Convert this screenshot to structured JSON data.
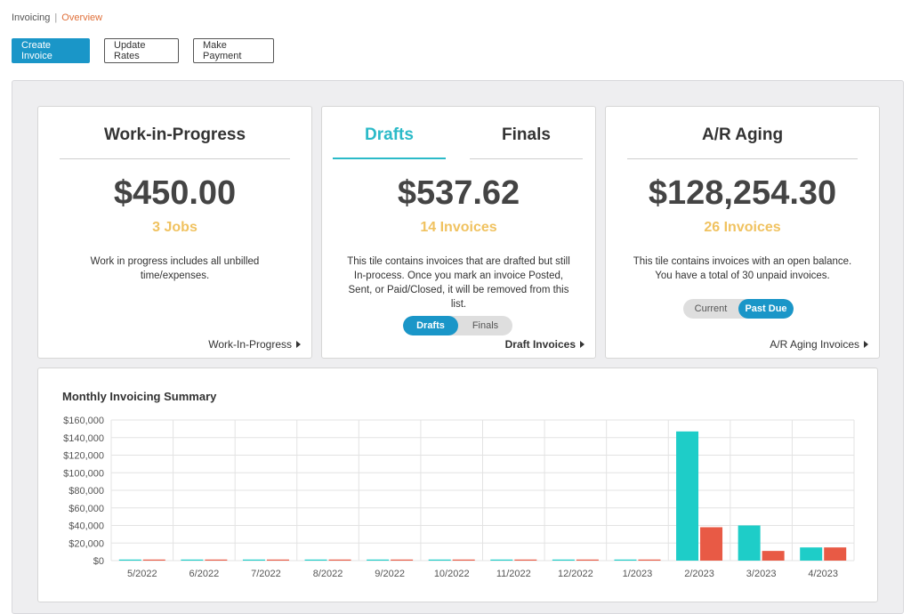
{
  "breadcrumb": {
    "root": "Invoicing",
    "separator": "|",
    "current": "Overview"
  },
  "toolbar": {
    "create_label": "Create Invoice",
    "update_label": "Update Rates",
    "payment_label": "Make Payment"
  },
  "wip": {
    "title": "Work-in-Progress",
    "amount": "$450.00",
    "count": "3 Jobs",
    "description": "Work in progress includes all unbilled time/expenses.",
    "link": "Work-In-Progress"
  },
  "drafts": {
    "tab_drafts": "Drafts",
    "tab_finals": "Finals",
    "amount": "$537.62",
    "count": "14 Invoices",
    "description": "This tile contains invoices that are drafted but still In-process. Once you mark an invoice Posted, Sent, or Paid/Closed, it will be removed from this list.",
    "toggle_on": "Drafts",
    "toggle_off": "Finals",
    "link": "Draft Invoices"
  },
  "aging": {
    "title": "A/R Aging",
    "amount": "$128,254.30",
    "count": "26 Invoices",
    "description": "This tile contains invoices with an open balance. You have a total of 30 unpaid invoices.",
    "toggle_off": "Current",
    "toggle_on": "Past Due",
    "link": "A/R Aging Invoices"
  },
  "colors": {
    "accent": "#1a96c8",
    "drafts_tab": "#2bbac8",
    "count": "#f0c260",
    "series_teal": "#1ecdc8",
    "series_red": "#e85a45"
  },
  "chart_data": {
    "type": "bar",
    "title": "Monthly Invoicing Summary",
    "categories": [
      "5/2022",
      "6/2022",
      "7/2022",
      "8/2022",
      "9/2022",
      "10/2022",
      "11/2022",
      "12/2022",
      "1/2023",
      "2/2023",
      "3/2023",
      "4/2023"
    ],
    "series": [
      {
        "color": "#1ecdc8",
        "values": [
          0,
          0,
          0,
          0,
          0,
          0,
          0,
          0,
          0,
          147000,
          40000,
          15000
        ]
      },
      {
        "color": "#e85a45",
        "values": [
          0,
          0,
          0,
          0,
          0,
          0,
          0,
          0,
          0,
          38000,
          11000,
          15000
        ]
      }
    ],
    "ylim": [
      0,
      160000
    ],
    "yticks": [
      0,
      20000,
      40000,
      60000,
      80000,
      100000,
      120000,
      140000,
      160000
    ],
    "ytick_labels": [
      "$0",
      "$20,000",
      "$40,000",
      "$60,000",
      "$80,000",
      "$100,000",
      "$120,000",
      "$140,000",
      "$160,000"
    ],
    "grid": true
  }
}
